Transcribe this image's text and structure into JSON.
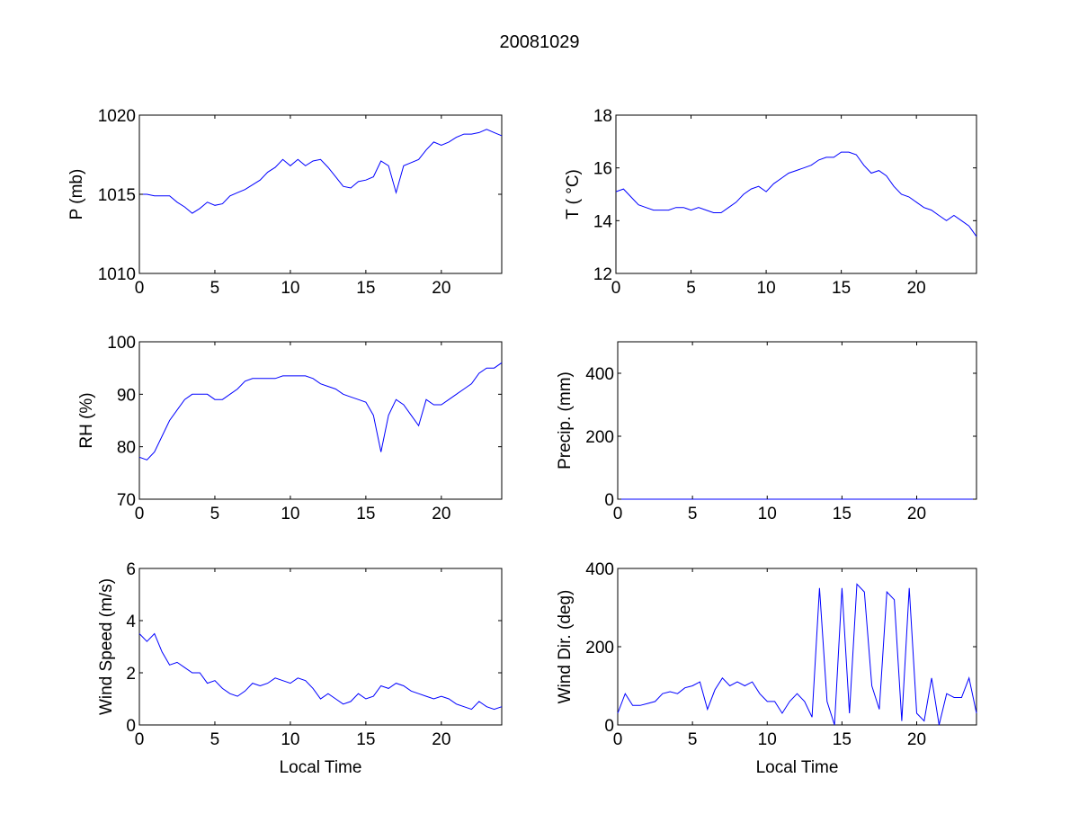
{
  "figure_title": "20081029",
  "colors": {
    "line": "#0000ff",
    "axes": "#000000",
    "background": "#ffffff"
  },
  "chart_data": [
    {
      "type": "line",
      "name": "pressure",
      "ylabel": "P (mb)",
      "xlabel": "",
      "xlim": [
        0,
        24
      ],
      "ylim": [
        1010,
        1020
      ],
      "xticks": [
        0,
        5,
        10,
        15,
        20
      ],
      "yticks": [
        1010,
        1015,
        1020
      ],
      "x_step": 0.5,
      "values": [
        1015,
        1015,
        1014.9,
        1014.9,
        1014.9,
        1014.5,
        1014.2,
        1013.8,
        1014.1,
        1014.5,
        1014.3,
        1014.4,
        1014.9,
        1015.1,
        1015.3,
        1015.6,
        1015.9,
        1016.4,
        1016.7,
        1017.2,
        1016.8,
        1017.2,
        1016.8,
        1017.1,
        1017.2,
        1016.7,
        1016.1,
        1015.5,
        1015.4,
        1015.8,
        1015.9,
        1016.1,
        1017.1,
        1016.8,
        1015.1,
        1016.8,
        1017,
        1017.2,
        1017.8,
        1018.3,
        1018.1,
        1018.3,
        1018.6,
        1018.8,
        1018.8,
        1018.9,
        1019.1,
        1018.9,
        1018.7
      ]
    },
    {
      "type": "line",
      "name": "temperature",
      "ylabel": "T ( °C)",
      "xlabel": "",
      "xlim": [
        0,
        24
      ],
      "ylim": [
        12,
        18
      ],
      "xticks": [
        0,
        5,
        10,
        15,
        20
      ],
      "yticks": [
        12,
        14,
        16,
        18
      ],
      "x_step": 0.5,
      "values": [
        15.1,
        15.2,
        14.9,
        14.6,
        14.5,
        14.4,
        14.4,
        14.4,
        14.5,
        14.5,
        14.4,
        14.5,
        14.4,
        14.3,
        14.3,
        14.5,
        14.7,
        15.0,
        15.2,
        15.3,
        15.1,
        15.4,
        15.6,
        15.8,
        15.9,
        16.0,
        16.1,
        16.3,
        16.4,
        16.4,
        16.6,
        16.6,
        16.5,
        16.1,
        15.8,
        15.9,
        15.7,
        15.3,
        15.0,
        14.9,
        14.7,
        14.5,
        14.4,
        14.2,
        14.0,
        14.2,
        14.0,
        13.8,
        13.4
      ]
    },
    {
      "type": "line",
      "name": "relative-humidity",
      "ylabel": "RH (%)",
      "xlabel": "",
      "xlim": [
        0,
        24
      ],
      "ylim": [
        70,
        100
      ],
      "xticks": [
        0,
        5,
        10,
        15,
        20
      ],
      "yticks": [
        70,
        80,
        90,
        100
      ],
      "x_step": 0.5,
      "values": [
        78,
        77.5,
        79,
        82,
        85,
        87,
        89,
        90,
        90,
        90,
        89,
        89,
        90,
        91,
        92.5,
        93,
        93,
        93,
        93,
        93.5,
        93.5,
        93.5,
        93.5,
        93,
        92,
        91.5,
        91,
        90,
        89.5,
        89,
        88.5,
        86,
        79,
        86,
        89,
        88,
        86,
        84,
        89,
        88,
        88,
        89,
        90,
        91,
        92,
        94,
        95,
        95,
        96
      ]
    },
    {
      "type": "line",
      "name": "precipitation",
      "ylabel": "Precip. (mm)",
      "xlabel": "",
      "xlim": [
        0,
        24
      ],
      "ylim": [
        0,
        500
      ],
      "xticks": [
        0,
        5,
        10,
        15,
        20
      ],
      "yticks": [
        0,
        200,
        400
      ],
      "x_step": 0.5,
      "values": [
        0,
        0,
        0,
        0,
        0,
        0,
        0,
        0,
        0,
        0,
        0,
        0,
        0,
        0,
        0,
        0,
        0,
        0,
        0,
        0,
        0,
        0,
        0,
        0,
        0,
        0,
        0,
        0,
        0,
        0,
        0,
        0,
        0,
        0,
        0,
        0,
        0,
        0,
        0,
        0,
        0,
        0,
        0,
        0,
        0,
        0,
        0,
        0,
        0
      ]
    },
    {
      "type": "line",
      "name": "wind-speed",
      "ylabel": "Wind Speed (m/s)",
      "xlabel": "Local Time",
      "xlim": [
        0,
        24
      ],
      "ylim": [
        0,
        6
      ],
      "xticks": [
        0,
        5,
        10,
        15,
        20
      ],
      "yticks": [
        0,
        2,
        4,
        6
      ],
      "x_step": 0.5,
      "values": [
        3.5,
        3.2,
        3.5,
        2.8,
        2.3,
        2.4,
        2.2,
        2.0,
        2.0,
        1.6,
        1.7,
        1.4,
        1.2,
        1.1,
        1.3,
        1.6,
        1.5,
        1.6,
        1.8,
        1.7,
        1.6,
        1.8,
        1.7,
        1.4,
        1.0,
        1.2,
        1.0,
        0.8,
        0.9,
        1.2,
        1.0,
        1.1,
        1.5,
        1.4,
        1.6,
        1.5,
        1.3,
        1.2,
        1.1,
        1.0,
        1.1,
        1.0,
        0.8,
        0.7,
        0.6,
        0.9,
        0.7,
        0.6,
        0.7
      ]
    },
    {
      "type": "line",
      "name": "wind-direction",
      "ylabel": "Wind Dir. (deg)",
      "xlabel": "Local Time",
      "xlim": [
        0,
        24
      ],
      "ylim": [
        0,
        400
      ],
      "xticks": [
        0,
        5,
        10,
        15,
        20
      ],
      "yticks": [
        0,
        200,
        400
      ],
      "x_step": 0.5,
      "values": [
        30,
        80,
        50,
        50,
        55,
        60,
        80,
        85,
        80,
        95,
        100,
        110,
        40,
        90,
        120,
        100,
        110,
        100,
        110,
        80,
        60,
        60,
        30,
        60,
        80,
        60,
        20,
        350,
        60,
        0,
        350,
        30,
        360,
        340,
        100,
        40,
        340,
        320,
        10,
        350,
        30,
        10,
        120,
        0,
        80,
        70,
        70,
        120,
        30
      ]
    }
  ]
}
